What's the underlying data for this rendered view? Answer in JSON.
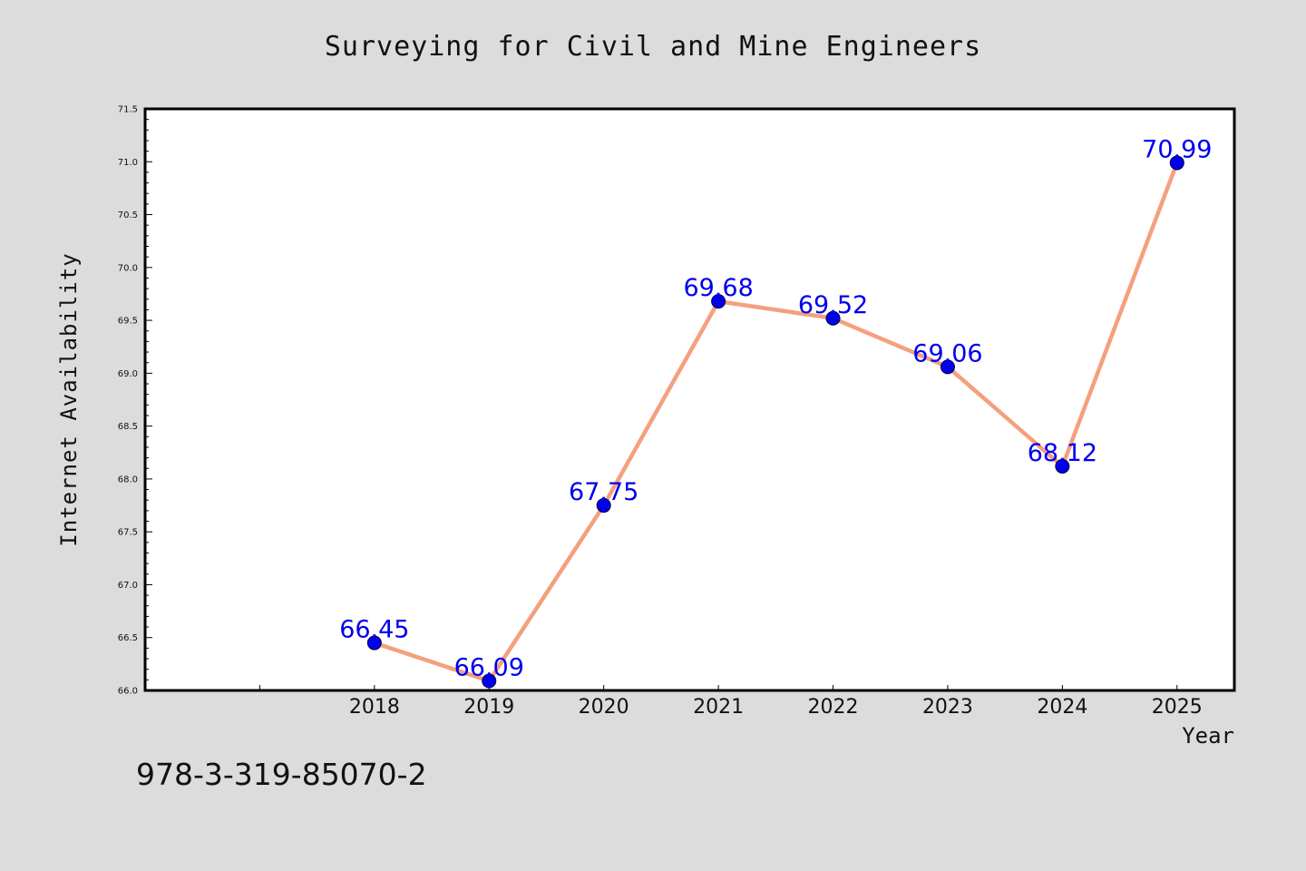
{
  "chart_data": {
    "type": "line",
    "title": "Surveying for Civil and Mine Engineers",
    "xlabel": "Year",
    "ylabel": "Internet Availability",
    "categories": [
      "2018",
      "2019",
      "2020",
      "2021",
      "2022",
      "2023",
      "2024",
      "2025"
    ],
    "series": [
      {
        "values": [
          66.45,
          66.09,
          67.75,
          69.68,
          69.52,
          69.06,
          68.12,
          70.99
        ],
        "data_labels": [
          "66.45",
          "66.09",
          "67.75",
          "69.68",
          "69.52",
          "69.06",
          "68.12",
          "70.99"
        ]
      }
    ],
    "y_ticks": [
      "66.0",
      "66.5",
      "67.0",
      "67.5",
      "68.0",
      "68.5",
      "69.0",
      "69.5",
      "70.0",
      "70.5",
      "71.0",
      "71.5"
    ],
    "ylim": [
      66.0,
      71.5
    ],
    "x_category_range": [
      2016,
      2025.5
    ],
    "grid": false,
    "legend": "none",
    "colors": {
      "line": "#f4a07e",
      "marker": "#0000ee",
      "data_label": "#0000ee",
      "background": "#dcdcdc",
      "plot_background": "#ffffff"
    }
  },
  "footer": {
    "id_text": "978-3-319-85070-2"
  }
}
